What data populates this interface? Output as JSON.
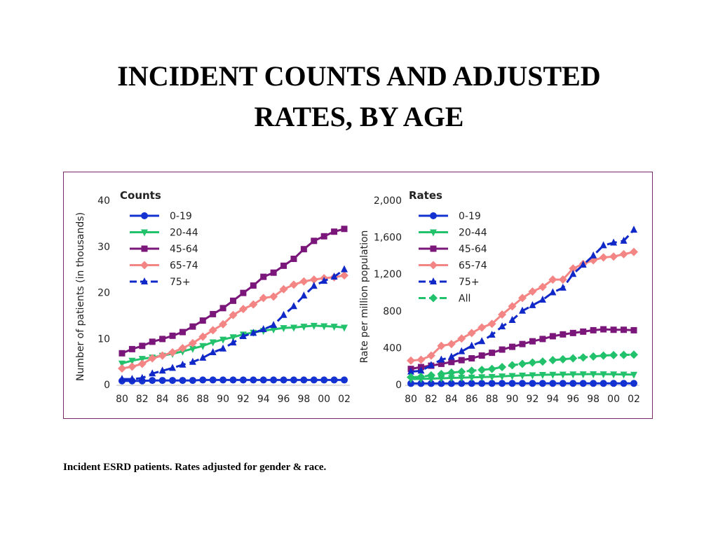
{
  "slide": {
    "title_line1": "INCIDENT COUNTS AND ADJUSTED",
    "title_line2": "RATES, BY AGE",
    "caption": "Incident ESRD patients. Rates adjusted for gender & race."
  },
  "colors": {
    "0-19": "#1432d2",
    "20-44": "#22c16b",
    "45-64": "#7b177a",
    "65-74": "#f48585",
    "75+": "#1028c8",
    "All": "#22c16b",
    "frame": "#7a2a6a"
  },
  "chart_data": [
    {
      "type": "line",
      "title": "Counts",
      "xlabel": "",
      "ylabel": "Number of patients (in thousands)",
      "ylim": [
        0,
        40
      ],
      "yticks": [
        "0",
        "10",
        "20",
        "30",
        "40"
      ],
      "xticks": [
        "80",
        "82",
        "84",
        "86",
        "88",
        "90",
        "92",
        "94",
        "96",
        "98",
        "00",
        "02"
      ],
      "x": [
        1980,
        1981,
        1982,
        1983,
        1984,
        1985,
        1986,
        1987,
        1988,
        1989,
        1990,
        1991,
        1992,
        1993,
        1994,
        1995,
        1996,
        1997,
        1998,
        1999,
        2000,
        2001,
        2002
      ],
      "legend": "top-left",
      "series": [
        {
          "name": "0-19",
          "marker": "circle",
          "dashed": false,
          "values": [
            0.8,
            0.8,
            0.8,
            0.9,
            0.9,
            0.9,
            0.9,
            0.9,
            1.0,
            1.0,
            1.0,
            1.0,
            1.0,
            1.0,
            1.0,
            1.0,
            1.0,
            1.0,
            1.0,
            1.0,
            1.0,
            1.0,
            1.0
          ]
        },
        {
          "name": "20-44",
          "marker": "tri-down",
          "dashed": false,
          "values": [
            4.6,
            5.2,
            5.6,
            5.9,
            6.3,
            6.7,
            7.2,
            7.8,
            8.4,
            9.2,
            9.8,
            10.3,
            10.9,
            11.3,
            11.7,
            12.0,
            12.3,
            12.4,
            12.6,
            12.8,
            12.7,
            12.6,
            12.4
          ]
        },
        {
          "name": "45-64",
          "marker": "square",
          "dashed": false,
          "values": [
            6.8,
            7.7,
            8.4,
            9.3,
            9.9,
            10.6,
            11.4,
            12.6,
            13.9,
            15.3,
            16.6,
            18.2,
            19.9,
            21.5,
            23.4,
            24.3,
            25.8,
            27.3,
            29.4,
            31.2,
            32.2,
            33.2,
            33.8
          ]
        },
        {
          "name": "65-74",
          "marker": "diamond",
          "dashed": false,
          "values": [
            3.5,
            3.9,
            4.5,
            5.7,
            6.3,
            7.0,
            7.9,
            9.0,
            10.4,
            11.8,
            13.1,
            15.1,
            16.4,
            17.4,
            18.8,
            19.1,
            20.7,
            21.7,
            22.4,
            22.8,
            23.1,
            23.3,
            23.7
          ]
        },
        {
          "name": "75+",
          "marker": "tri-up",
          "dashed": true,
          "values": [
            1.2,
            1.2,
            1.4,
            2.4,
            3.0,
            3.6,
            4.3,
            4.9,
            5.8,
            7.0,
            7.8,
            9.1,
            10.5,
            11.2,
            12.0,
            12.9,
            15.1,
            17.0,
            19.3,
            21.4,
            22.5,
            23.4,
            25.0
          ]
        }
      ]
    },
    {
      "type": "line",
      "title": "Rates",
      "xlabel": "",
      "ylabel": "Rate per million population",
      "ylim": [
        0,
        2000
      ],
      "yticks": [
        "0",
        "400",
        "800",
        "1,200",
        "1,600",
        "2,000"
      ],
      "xticks": [
        "80",
        "82",
        "84",
        "86",
        "88",
        "90",
        "92",
        "94",
        "96",
        "98",
        "00",
        "02"
      ],
      "x": [
        1980,
        1981,
        1982,
        1983,
        1984,
        1985,
        1986,
        1987,
        1988,
        1989,
        1990,
        1991,
        1992,
        1993,
        1994,
        1995,
        1996,
        1997,
        1998,
        1999,
        2000,
        2001,
        2002
      ],
      "legend": "top-left",
      "series": [
        {
          "name": "0-19",
          "marker": "circle",
          "dashed": false,
          "values": [
            12,
            12,
            12,
            12,
            12,
            13,
            13,
            13,
            13,
            13,
            13,
            13,
            13,
            13,
            13,
            13,
            13,
            13,
            13,
            13,
            13,
            13,
            13
          ]
        },
        {
          "name": "20-44",
          "marker": "tri-down",
          "dashed": false,
          "values": [
            60,
            62,
            65,
            68,
            72,
            75,
            78,
            82,
            85,
            90,
            95,
            100,
            103,
            106,
            108,
            110,
            112,
            113,
            114,
            113,
            112,
            110,
            108
          ]
        },
        {
          "name": "45-64",
          "marker": "square",
          "dashed": false,
          "values": [
            170,
            190,
            205,
            225,
            245,
            265,
            285,
            315,
            345,
            380,
            410,
            440,
            470,
            495,
            525,
            545,
            560,
            575,
            590,
            600,
            595,
            595,
            590
          ]
        },
        {
          "name": "65-74",
          "marker": "diamond",
          "dashed": false,
          "values": [
            260,
            270,
            315,
            420,
            440,
            500,
            560,
            620,
            660,
            760,
            850,
            940,
            1010,
            1060,
            1140,
            1140,
            1260,
            1310,
            1350,
            1380,
            1390,
            1415,
            1440
          ]
        },
        {
          "name": "75+",
          "marker": "tri-up",
          "dashed": true,
          "values": [
            140,
            150,
            210,
            270,
            300,
            360,
            420,
            470,
            540,
            630,
            700,
            800,
            860,
            920,
            1000,
            1050,
            1200,
            1300,
            1400,
            1510,
            1540,
            1560,
            1680
          ]
        },
        {
          "name": "All",
          "marker": "diamond",
          "dashed": true,
          "values": [
            80,
            85,
            100,
            115,
            130,
            140,
            150,
            160,
            170,
            190,
            210,
            225,
            240,
            250,
            265,
            275,
            285,
            295,
            305,
            315,
            320,
            322,
            325
          ]
        }
      ]
    }
  ]
}
